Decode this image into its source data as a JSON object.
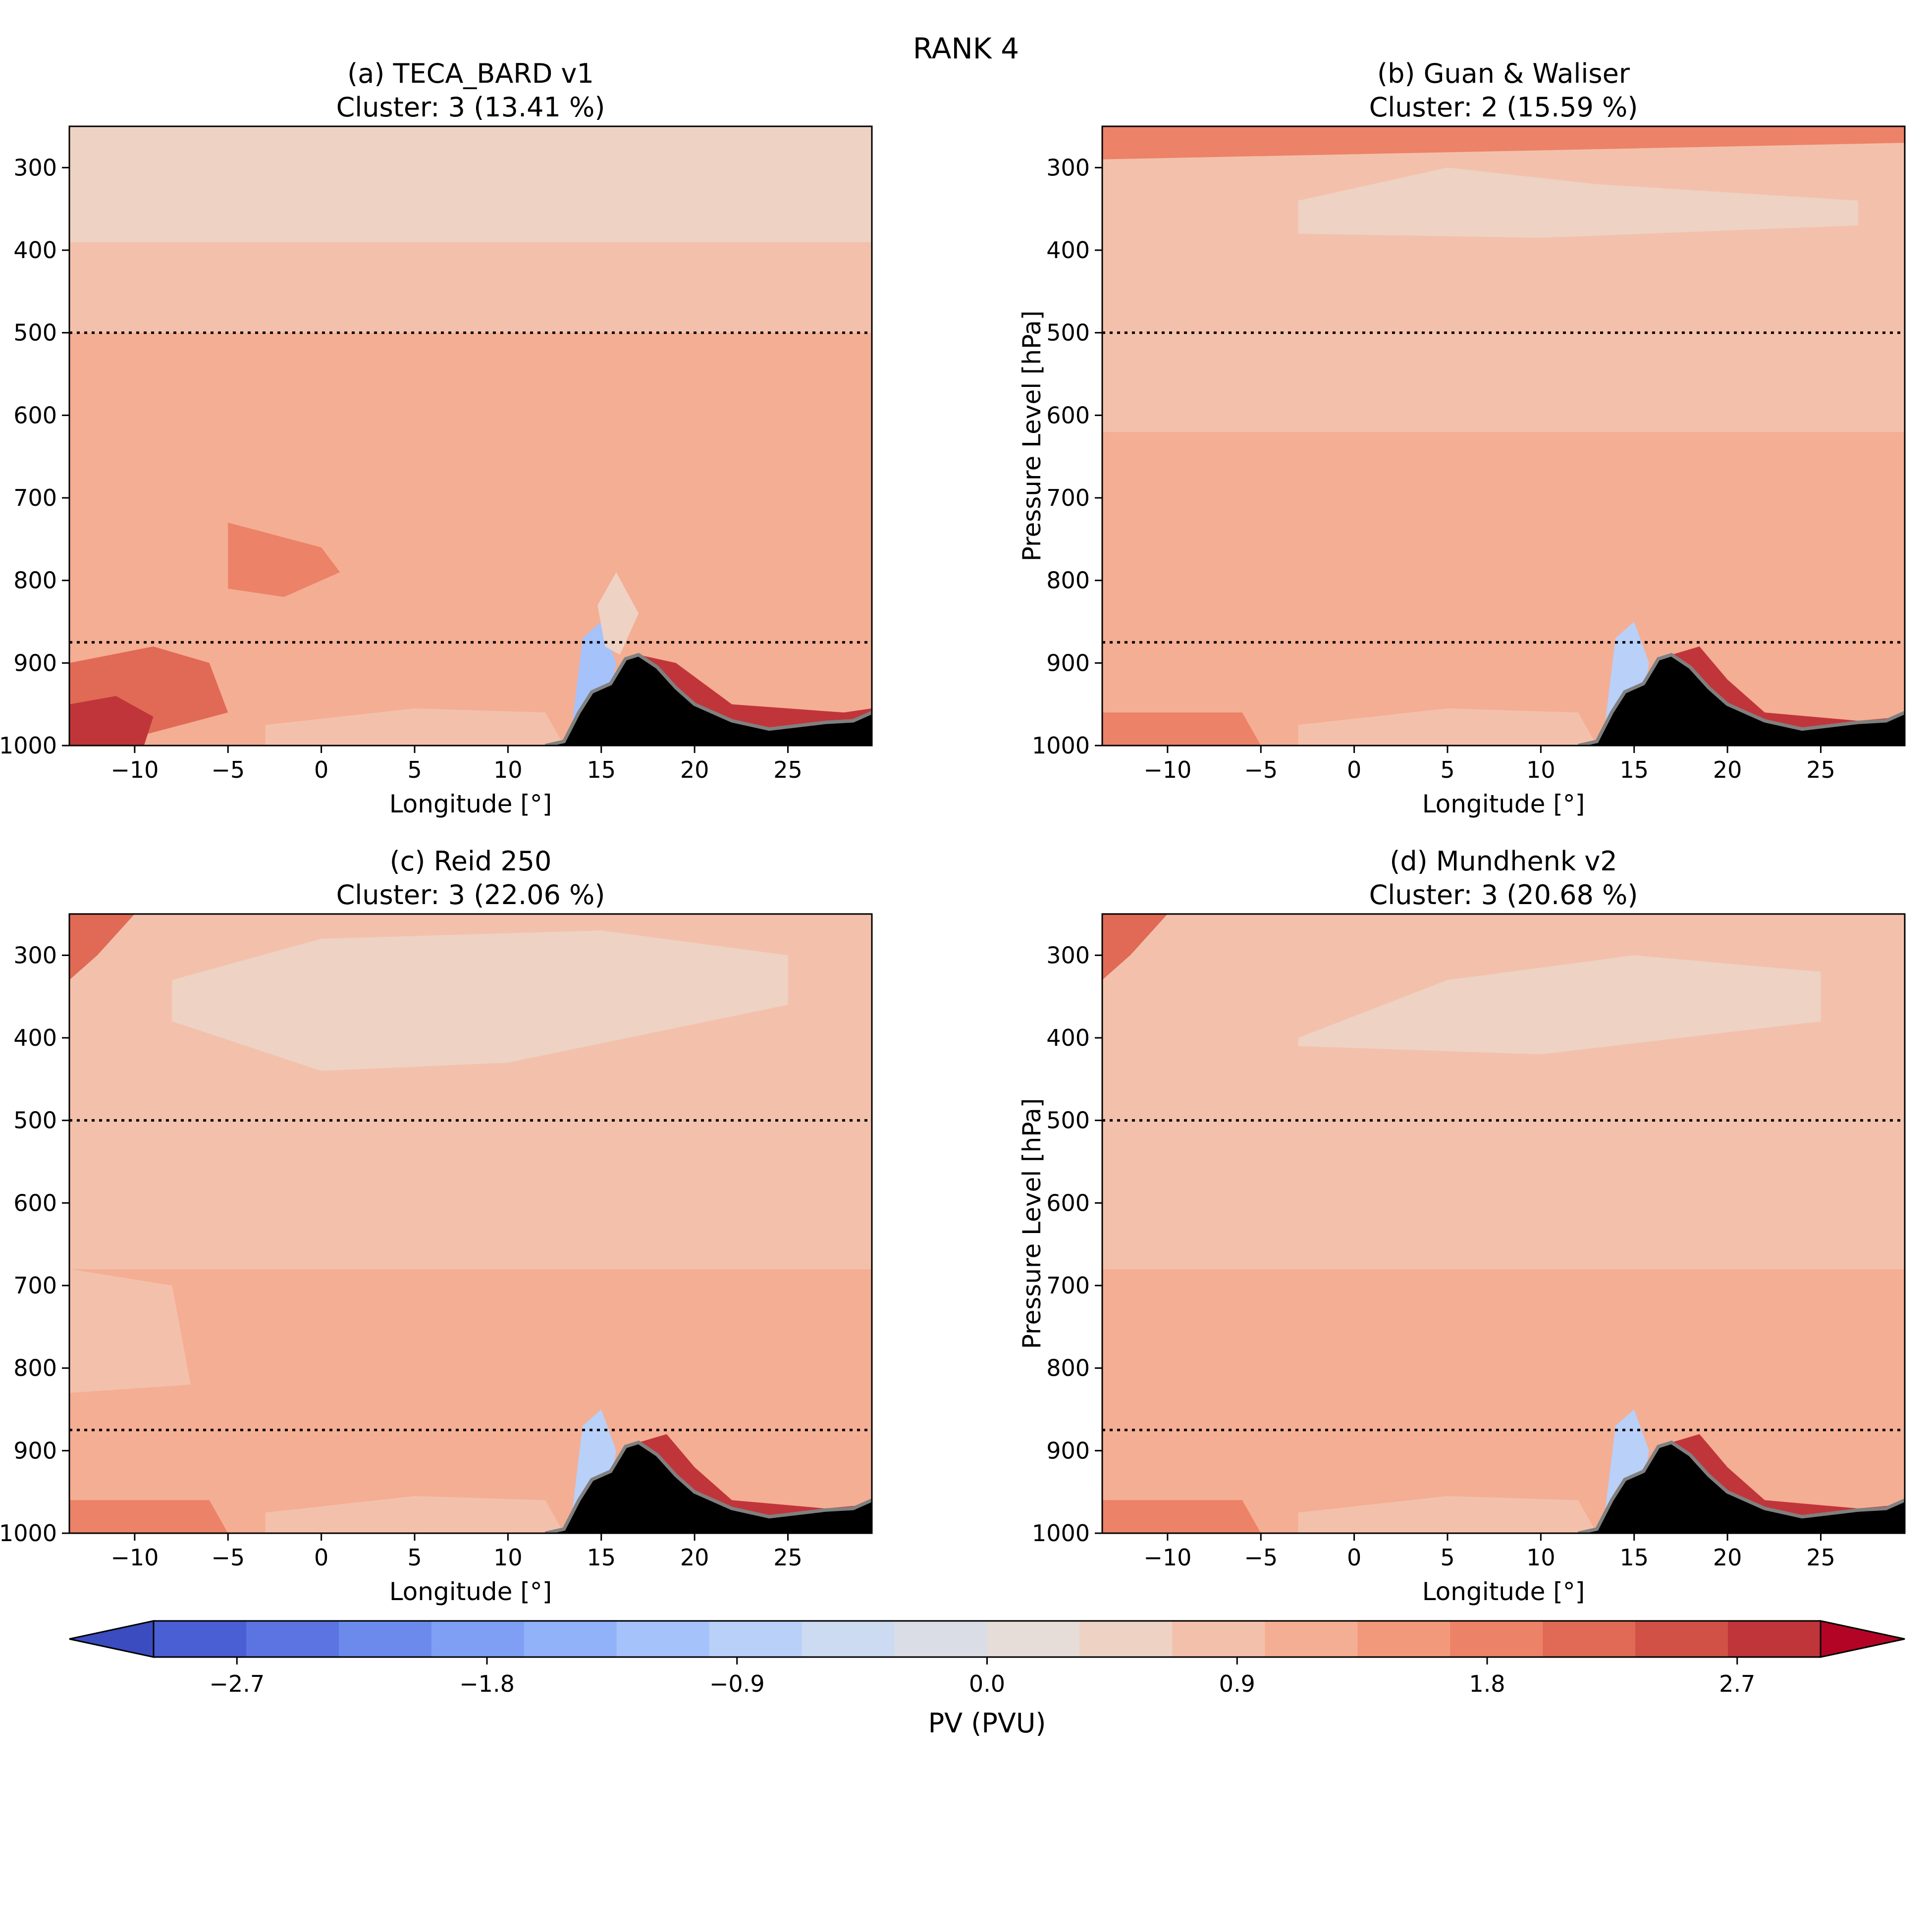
{
  "figure": {
    "title": "RANK 4"
  },
  "chart_data": [
    {
      "type": "heatmap",
      "title": "(a) TECA_BARD v1",
      "subtitle": "Cluster: 3 (13.41 %)",
      "xlabel": "Longitude [°]",
      "ylabel": "",
      "xlim": [
        -13.5,
        29.5
      ],
      "ylim": [
        1000,
        250
      ],
      "xticks": [
        -10,
        -5,
        0,
        5,
        10,
        15,
        20,
        25
      ],
      "yticks": [
        300,
        400,
        500,
        600,
        700,
        800,
        900,
        1000
      ],
      "reference_lines": [
        500,
        875
      ],
      "regions": [
        {
          "pv": 0.25,
          "band": [
            250,
            390
          ]
        },
        {
          "pv": 0.45,
          "band": [
            390,
            500
          ]
        },
        {
          "pv": 0.75,
          "band": [
            500,
            1000
          ]
        },
        {
          "pv": 1.3,
          "poly": [
            [
              -5,
              730
            ],
            [
              0,
              760
            ],
            [
              1,
              790
            ],
            [
              -2,
              820
            ],
            [
              -5,
              810
            ],
            [
              -5,
              760
            ]
          ]
        },
        {
          "pv": 1.5,
          "poly": [
            [
              -13.5,
              900
            ],
            [
              -9,
              880
            ],
            [
              -6,
              900
            ],
            [
              -5,
              960
            ],
            [
              -10,
              990
            ],
            [
              -13.5,
              990
            ]
          ]
        },
        {
          "pv": 2.9,
          "poly": [
            [
              -13.5,
              950
            ],
            [
              -11,
              940
            ],
            [
              -9,
              965
            ],
            [
              -9.5,
              1000
            ],
            [
              -13.5,
              1000
            ]
          ]
        },
        {
          "pv": 0.3,
          "poly": [
            [
              -3,
              975
            ],
            [
              5,
              955
            ],
            [
              12,
              960
            ],
            [
              13,
              1000
            ],
            [
              -3,
              1000
            ]
          ]
        },
        {
          "pv": -1.4,
          "poly": [
            [
              13.3,
              1000
            ],
            [
              14,
              870
            ],
            [
              15,
              850
            ],
            [
              15.8,
              900
            ],
            [
              15,
              1000
            ]
          ]
        },
        {
          "pv": 0.1,
          "poly": [
            [
              14.8,
              830
            ],
            [
              15.8,
              790
            ],
            [
              17,
              840
            ],
            [
              16,
              890
            ],
            [
              15.2,
              880
            ]
          ]
        },
        {
          "pv": 2.6,
          "poly": [
            [
              17,
              890
            ],
            [
              19,
              900
            ],
            [
              22,
              950
            ],
            [
              28,
              960
            ],
            [
              29.5,
              955
            ],
            [
              29.5,
              975
            ],
            [
              24,
              980
            ],
            [
              20,
              965
            ],
            [
              18,
              920
            ]
          ]
        }
      ]
    },
    {
      "type": "heatmap",
      "title": "(b) Guan & Waliser",
      "subtitle": "Cluster: 2 (15.59 %)",
      "xlabel": "Longitude [°]",
      "ylabel": "Pressure Level [hPa]",
      "xlim": [
        -13.5,
        29.5
      ],
      "ylim": [
        1000,
        250
      ],
      "xticks": [
        -10,
        -5,
        0,
        5,
        10,
        15,
        20,
        25
      ],
      "yticks": [
        300,
        400,
        500,
        600,
        700,
        800,
        900,
        1000
      ],
      "reference_lines": [
        500,
        875
      ],
      "regions": [
        {
          "pv": 0.45,
          "band": [
            250,
            620
          ]
        },
        {
          "pv": 0.75,
          "band": [
            620,
            1000
          ]
        },
        {
          "pv": 1.4,
          "poly": [
            [
              -13.5,
              250
            ],
            [
              29.5,
              250
            ],
            [
              29.5,
              270
            ],
            [
              -13.5,
              290
            ]
          ]
        },
        {
          "pv": 0.15,
          "poly": [
            [
              -3,
              340
            ],
            [
              5,
              300
            ],
            [
              13,
              320
            ],
            [
              27,
              340
            ],
            [
              27,
              370
            ],
            [
              10,
              385
            ],
            [
              -3,
              380
            ]
          ]
        },
        {
          "pv": 1.2,
          "poly": [
            [
              -13.5,
              960
            ],
            [
              -6,
              960
            ],
            [
              -5,
              1000
            ],
            [
              -13.5,
              1000
            ]
          ]
        },
        {
          "pv": 0.3,
          "poly": [
            [
              -3,
              975
            ],
            [
              5,
              955
            ],
            [
              12,
              960
            ],
            [
              13,
              1000
            ],
            [
              -3,
              1000
            ]
          ]
        },
        {
          "pv": -1.2,
          "poly": [
            [
              13.3,
              1000
            ],
            [
              14,
              870
            ],
            [
              15,
              850
            ],
            [
              15.8,
              900
            ],
            [
              15,
              1000
            ]
          ]
        },
        {
          "pv": 2.4,
          "poly": [
            [
              17,
              890
            ],
            [
              18.5,
              880
            ],
            [
              20,
              920
            ],
            [
              22,
              960
            ],
            [
              27,
              970
            ],
            [
              29.5,
              965
            ],
            [
              29.5,
              980
            ],
            [
              22,
              985
            ],
            [
              19,
              960
            ],
            [
              17.5,
              920
            ]
          ]
        }
      ]
    },
    {
      "type": "heatmap",
      "title": "(c) Reid 250",
      "subtitle": "Cluster: 3 (22.06 %)",
      "xlabel": "Longitude [°]",
      "ylabel": "",
      "xlim": [
        -13.5,
        29.5
      ],
      "ylim": [
        1000,
        250
      ],
      "xticks": [
        -10,
        -5,
        0,
        5,
        10,
        15,
        20,
        25
      ],
      "yticks": [
        300,
        400,
        500,
        600,
        700,
        800,
        900,
        1000
      ],
      "reference_lines": [
        500,
        875
      ],
      "regions": [
        {
          "pv": 0.45,
          "band": [
            250,
            680
          ]
        },
        {
          "pv": 0.75,
          "band": [
            680,
            1000
          ]
        },
        {
          "pv": 1.6,
          "poly": [
            [
              -13.5,
              250
            ],
            [
              -10,
              250
            ],
            [
              -12,
              300
            ],
            [
              -13.5,
              330
            ]
          ]
        },
        {
          "pv": 0.2,
          "poly": [
            [
              -8,
              330
            ],
            [
              0,
              280
            ],
            [
              15,
              270
            ],
            [
              25,
              300
            ],
            [
              25,
              360
            ],
            [
              10,
              430
            ],
            [
              0,
              440
            ],
            [
              -8,
              380
            ]
          ]
        },
        {
          "pv": 0.4,
          "poly": [
            [
              -13.5,
              680
            ],
            [
              -8,
              700
            ],
            [
              -7,
              820
            ],
            [
              -13.5,
              830
            ]
          ]
        },
        {
          "pv": 1.2,
          "poly": [
            [
              -13.5,
              960
            ],
            [
              -6,
              960
            ],
            [
              -5,
              1000
            ],
            [
              -13.5,
              1000
            ]
          ]
        },
        {
          "pv": 0.3,
          "poly": [
            [
              -3,
              975
            ],
            [
              5,
              955
            ],
            [
              12,
              960
            ],
            [
              13,
              1000
            ],
            [
              -3,
              1000
            ]
          ]
        },
        {
          "pv": -1.2,
          "poly": [
            [
              13.3,
              1000
            ],
            [
              14,
              870
            ],
            [
              15,
              850
            ],
            [
              15.8,
              900
            ],
            [
              15,
              1000
            ]
          ]
        },
        {
          "pv": 2.4,
          "poly": [
            [
              17,
              890
            ],
            [
              18.5,
              880
            ],
            [
              20,
              920
            ],
            [
              22,
              960
            ],
            [
              27,
              970
            ],
            [
              29.5,
              965
            ],
            [
              29.5,
              980
            ],
            [
              22,
              985
            ],
            [
              19,
              960
            ],
            [
              17.5,
              920
            ]
          ]
        }
      ]
    },
    {
      "type": "heatmap",
      "title": "(d) Mundhenk v2",
      "subtitle": "Cluster: 3 (20.68 %)",
      "xlabel": "Longitude [°]",
      "ylabel": "Pressure Level [hPa]",
      "xlim": [
        -13.5,
        29.5
      ],
      "ylim": [
        1000,
        250
      ],
      "xticks": [
        -10,
        -5,
        0,
        5,
        10,
        15,
        20,
        25
      ],
      "yticks": [
        300,
        400,
        500,
        600,
        700,
        800,
        900,
        1000
      ],
      "reference_lines": [
        500,
        875
      ],
      "regions": [
        {
          "pv": 0.45,
          "band": [
            250,
            680
          ]
        },
        {
          "pv": 0.75,
          "band": [
            680,
            1000
          ]
        },
        {
          "pv": 1.6,
          "poly": [
            [
              -13.5,
              250
            ],
            [
              -10,
              250
            ],
            [
              -12,
              300
            ],
            [
              -13.5,
              330
            ]
          ]
        },
        {
          "pv": 0.25,
          "poly": [
            [
              -3,
              400
            ],
            [
              5,
              330
            ],
            [
              15,
              300
            ],
            [
              25,
              320
            ],
            [
              25,
              380
            ],
            [
              10,
              420
            ],
            [
              -3,
              410
            ]
          ]
        },
        {
          "pv": 1.2,
          "poly": [
            [
              -13.5,
              960
            ],
            [
              -6,
              960
            ],
            [
              -5,
              1000
            ],
            [
              -13.5,
              1000
            ]
          ]
        },
        {
          "pv": 0.3,
          "poly": [
            [
              -3,
              975
            ],
            [
              5,
              955
            ],
            [
              12,
              960
            ],
            [
              13,
              1000
            ],
            [
              -3,
              1000
            ]
          ]
        },
        {
          "pv": -1.2,
          "poly": [
            [
              13.3,
              1000
            ],
            [
              14,
              870
            ],
            [
              15,
              850
            ],
            [
              15.8,
              900
            ],
            [
              15,
              1000
            ]
          ]
        },
        {
          "pv": 2.4,
          "poly": [
            [
              17,
              890
            ],
            [
              18.5,
              880
            ],
            [
              20,
              920
            ],
            [
              22,
              960
            ],
            [
              27,
              970
            ],
            [
              29.5,
              965
            ],
            [
              29.5,
              980
            ],
            [
              22,
              985
            ],
            [
              19,
              960
            ],
            [
              17.5,
              920
            ]
          ]
        }
      ]
    }
  ],
  "terrain": [
    [
      -13.5,
      1000
    ],
    [
      12,
      1000
    ],
    [
      13,
      995
    ],
    [
      13.8,
      960
    ],
    [
      14.5,
      935
    ],
    [
      15.5,
      925
    ],
    [
      16.3,
      895
    ],
    [
      17,
      890
    ],
    [
      18,
      905
    ],
    [
      19,
      930
    ],
    [
      20,
      950
    ],
    [
      22,
      970
    ],
    [
      24,
      980
    ],
    [
      27,
      972
    ],
    [
      28.5,
      970
    ],
    [
      29.5,
      960
    ],
    [
      29.5,
      1000
    ]
  ],
  "colorbar": {
    "label": "PV (PVU)",
    "ticks": [
      -2.7,
      -1.8,
      -0.9,
      0.0,
      0.9,
      1.8,
      2.7
    ],
    "tick_labels": [
      "−2.7",
      "−1.8",
      "−0.9",
      "0.0",
      "0.9",
      "1.8",
      "2.7"
    ],
    "range": [
      -3.0,
      3.0
    ],
    "step": 0.3,
    "colors": [
      "#4a5fd4",
      "#5b74e2",
      "#6c8aec",
      "#7e9ff4",
      "#91b1f9",
      "#a5c2fb",
      "#b9d0f9",
      "#ccdaf2",
      "#dadde6",
      "#e6dcd8",
      "#eed2c4",
      "#f3c1ab",
      "#f4ae93",
      "#f2997c",
      "#ec8267",
      "#e06a55",
      "#d15146",
      "#c0353a"
    ],
    "under_color": "#3b4cc0",
    "over_color": "#b40426"
  }
}
